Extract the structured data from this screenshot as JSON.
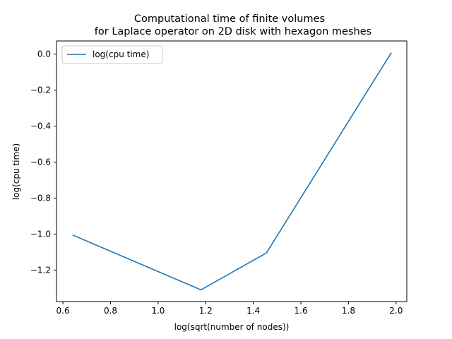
{
  "chart_data": {
    "type": "line",
    "title_line1": "Computational time of finite volumes",
    "title_line2": "for Laplace operator on 2D disk with hexagon meshes",
    "xlabel": "log(sqrt(number of nodes))",
    "ylabel": "log(cpu time)",
    "xlim": [
      0.573,
      2.045
    ],
    "ylim": [
      -1.375,
      0.073
    ],
    "xticks": [
      0.6,
      0.8,
      1.0,
      1.2,
      1.4,
      1.6,
      1.8,
      2.0
    ],
    "xtick_labels": [
      "0.6",
      "0.8",
      "1.0",
      "1.2",
      "1.4",
      "1.6",
      "1.8",
      "2.0"
    ],
    "yticks": [
      0.0,
      -0.2,
      -0.4,
      -0.6,
      -0.8,
      -1.0,
      -1.2
    ],
    "ytick_labels": [
      "0.0",
      "−0.2",
      "−0.4",
      "−0.6",
      "−0.8",
      "−1.0",
      "−1.2"
    ],
    "grid": false,
    "legend_position": "top-left",
    "series": [
      {
        "name": "log(cpu time)",
        "color": "#1f77b4",
        "x": [
          0.64,
          1.18,
          1.455,
          1.98
        ],
        "y": [
          -1.005,
          -1.31,
          -1.105,
          0.008
        ]
      }
    ]
  }
}
